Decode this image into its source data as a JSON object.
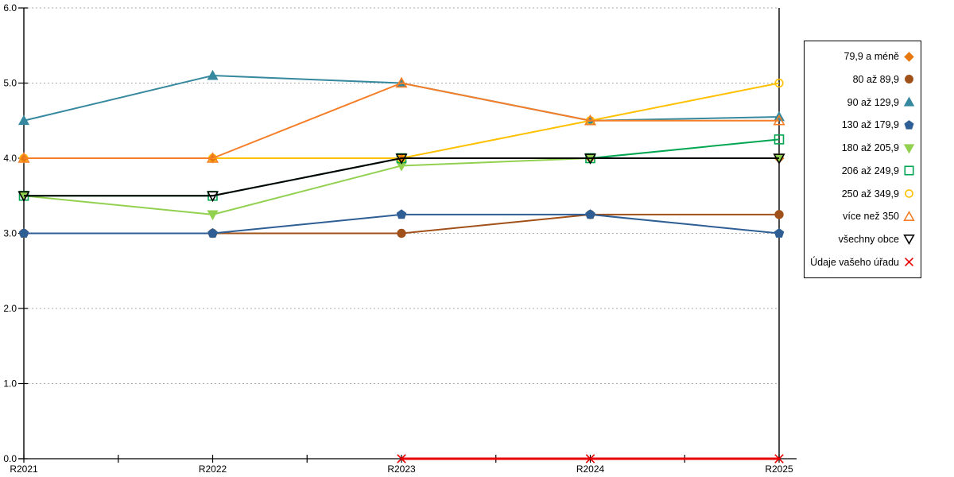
{
  "chart": {
    "background": "#FFFFFF",
    "axis_color": "#000000",
    "grid_color": "#ABABAB",
    "tick_label_color": "#000000"
  },
  "chart_data": {
    "type": "line",
    "title": "",
    "xlabel": "",
    "ylabel": "",
    "x": [
      "R2021",
      "R2022",
      "R2023",
      "R2024",
      "R2025"
    ],
    "ylim": [
      0,
      6
    ],
    "ytick_interval": 1.0,
    "ytick_labels": [
      "0.0",
      "1.0",
      "2.0",
      "3.0",
      "4.0",
      "5.0",
      "6.0"
    ],
    "grid": "horizontal-dashed",
    "legend_position": "right-outside",
    "series": [
      {
        "name": "79,9 a méně",
        "marker": "diamond",
        "fill": "filled",
        "color": "#E6780F",
        "line_width": 2,
        "values": [
          4.0,
          4.0,
          4.0,
          4.0,
          4.0
        ]
      },
      {
        "name": "80 až 89,9",
        "marker": "circle",
        "fill": "filled",
        "color": "#A0511A",
        "line_width": 2,
        "values": [
          3.0,
          3.0,
          3.0,
          3.25,
          3.25
        ]
      },
      {
        "name": "90 až 129,9",
        "marker": "triangle-up",
        "fill": "filled",
        "color": "#35889E",
        "line_width": 2,
        "values": [
          4.5,
          5.1,
          5.0,
          4.5,
          4.55
        ]
      },
      {
        "name": "130 až 179,9",
        "marker": "pentagon",
        "fill": "filled",
        "color": "#2E5E94",
        "line_width": 2,
        "values": [
          3.0,
          3.0,
          3.25,
          3.25,
          3.0
        ]
      },
      {
        "name": "180 až 205,9",
        "marker": "triangle-down",
        "fill": "filled",
        "color": "#92D050",
        "line_width": 2,
        "values": [
          3.5,
          3.25,
          3.9,
          4.0,
          4.0
        ]
      },
      {
        "name": "206 až 249,9",
        "marker": "square",
        "fill": "open",
        "color": "#00A651",
        "line_width": 2,
        "values": [
          3.5,
          3.5,
          4.0,
          4.0,
          4.25
        ]
      },
      {
        "name": "250 až 349,9",
        "marker": "circle",
        "fill": "open",
        "color": "#FFC000",
        "line_width": 2,
        "values": [
          4.0,
          4.0,
          4.0,
          4.5,
          5.0
        ]
      },
      {
        "name": "více než 350",
        "marker": "triangle-up",
        "fill": "open",
        "color": "#F57E27",
        "line_width": 2,
        "values": [
          4.0,
          4.0,
          5.0,
          4.5,
          4.5
        ]
      },
      {
        "name": "všechny obce",
        "marker": "triangle-down",
        "fill": "open",
        "color": "#000000",
        "line_width": 2,
        "values": [
          3.5,
          3.5,
          4.0,
          4.0,
          4.0
        ]
      },
      {
        "name": "Údaje vašeho úřadu",
        "marker": "x",
        "fill": "open",
        "color": "#E60000",
        "line_width": 3,
        "values": [
          null,
          null,
          0.0,
          0.0,
          0.0
        ]
      }
    ]
  }
}
